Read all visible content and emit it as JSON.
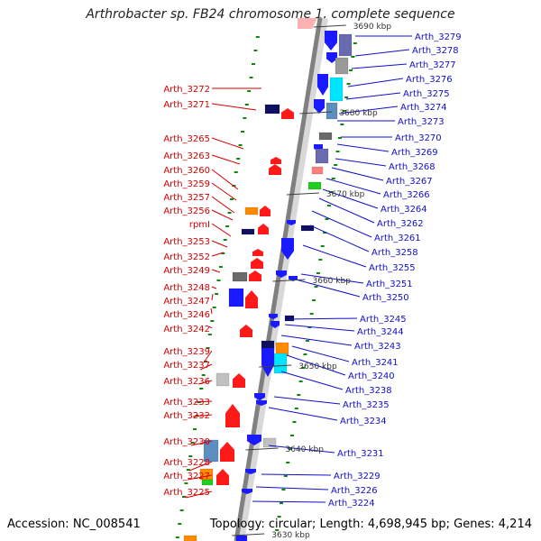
{
  "title": "Arthrobacter sp. FB24 chromosome 1, complete sequence",
  "accession": "Accession: NC_008541",
  "topology": "Topology: circular; Length: 4,698,945 bp; Genes: 4,214",
  "colors": {
    "backbone": "#808080",
    "label_left": "#d40000",
    "label_right": "#1010c8",
    "gene_red": "#ff1a1a",
    "gene_blue": "#1a1aff",
    "tick_green": "#0a8a0a",
    "cyan": "#00e5ff",
    "orange": "#ff8c00",
    "steelblue": "#5b8fc0",
    "navy": "#101060",
    "gray": "#9a9a9a",
    "slate": "#6a6ab0",
    "green": "#22cc22",
    "pink": "#ff7f7f"
  },
  "kbp_markers": [
    "3690 kbp",
    "3680 kbp",
    "3670 kbp",
    "3660 kbp",
    "3650 kbp",
    "3640 kbp",
    "3630 kbp"
  ],
  "left_labels": [
    "Arth_3272",
    "Arth_3271",
    "Arth_3265",
    "Arth_3263",
    "Arth_3260",
    "Arth_3259",
    "Arth_3257",
    "Arth_3256",
    "rpmI",
    "Arth_3253",
    "Arth_3252",
    "Arth_3249",
    "Arth_3248",
    "Arth_3247",
    "Arth_3246",
    "Arth_3242",
    "Arth_3239",
    "Arth_3237",
    "Arth_3236",
    "Arth_3233",
    "Arth_3232",
    "Arth_3230",
    "Arth_3228",
    "Arth_3227",
    "Arth_3225"
  ],
  "right_labels": [
    "Arth_3279",
    "Arth_3278",
    "Arth_3277",
    "Arth_3276",
    "Arth_3275",
    "Arth_3274",
    "Arth_3273",
    "Arth_3270",
    "Arth_3269",
    "Arth_3268",
    "Arth_3267",
    "Arth_3266",
    "Arth_3264",
    "Arth_3262",
    "Arth_3261",
    "Arth_3258",
    "Arth_3255",
    "Arth_3251",
    "Arth_3250",
    "Arth_3245",
    "Arth_3244",
    "Arth_3243",
    "Arth_3241",
    "Arth_3240",
    "Arth_3238",
    "Arth_3235",
    "Arth_3234",
    "Arth_3231",
    "Arth_3229",
    "Arth_3226",
    "Arth_3224"
  ]
}
